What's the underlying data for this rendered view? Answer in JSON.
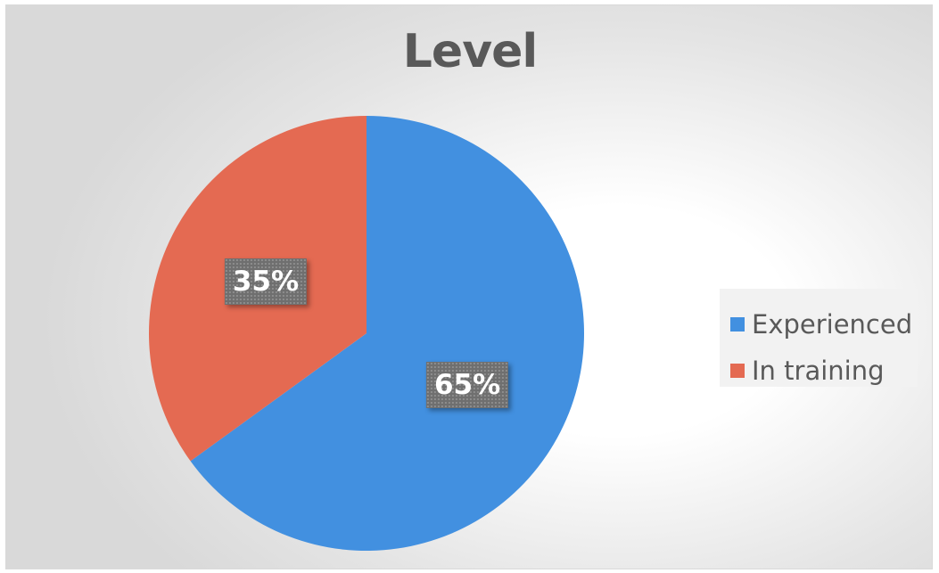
{
  "chart_data": {
    "type": "pie",
    "title": "Level",
    "categories": [
      "Experienced",
      "In training"
    ],
    "values": [
      65,
      35
    ],
    "data_labels": [
      "65%",
      "35%"
    ],
    "colors": [
      "#4290e0",
      "#e46a52"
    ],
    "legend_position": "right",
    "start_angle": "12 o'clock, clockwise"
  }
}
